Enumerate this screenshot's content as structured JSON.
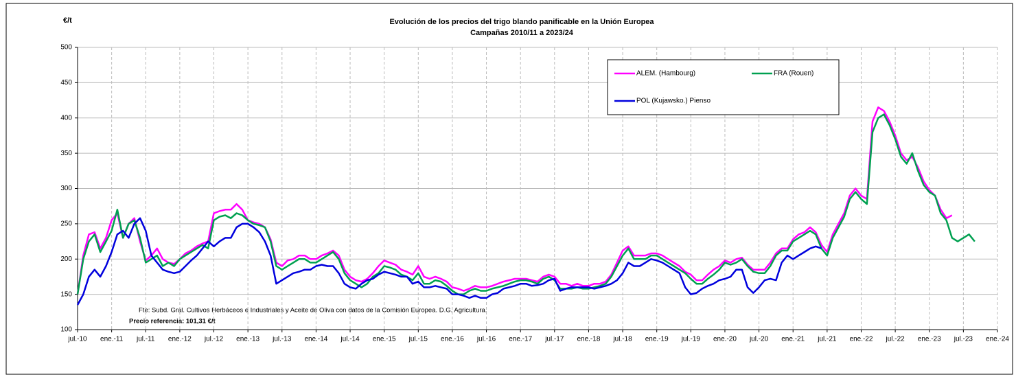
{
  "chart_data": {
    "type": "line",
    "title": "Evolución de los precios del trigo blando panificable en la Unión Europea",
    "subtitle": "Campañas 2010/11 a 2023/24",
    "y_label": "€/t",
    "source": "Fte: Subd. Gral. Cultivos Herbáceos e Industriales y Aceite de Oliva con datos de la Comisión Europea. D.G. Agricultura.",
    "note": "Precio referencia: 101,31 €/t",
    "x": [
      "2010-07",
      "2010-08",
      "2010-09",
      "2010-10",
      "2010-11",
      "2010-12",
      "2011-01",
      "2011-02",
      "2011-03",
      "2011-04",
      "2011-05",
      "2011-06",
      "2011-07",
      "2011-08",
      "2011-09",
      "2011-10",
      "2011-11",
      "2011-12",
      "2012-01",
      "2012-02",
      "2012-03",
      "2012-04",
      "2012-05",
      "2012-06",
      "2012-07",
      "2012-08",
      "2012-09",
      "2012-10",
      "2012-11",
      "2012-12",
      "2013-01",
      "2013-02",
      "2013-03",
      "2013-04",
      "2013-05",
      "2013-06",
      "2013-07",
      "2013-08",
      "2013-09",
      "2013-10",
      "2013-11",
      "2013-12",
      "2014-01",
      "2014-02",
      "2014-03",
      "2014-04",
      "2014-05",
      "2014-06",
      "2014-07",
      "2014-08",
      "2014-09",
      "2014-10",
      "2014-11",
      "2014-12",
      "2015-01",
      "2015-02",
      "2015-03",
      "2015-04",
      "2015-05",
      "2015-06",
      "2015-07",
      "2015-08",
      "2015-09",
      "2015-10",
      "2015-11",
      "2015-12",
      "2016-01",
      "2016-02",
      "2016-03",
      "2016-04",
      "2016-05",
      "2016-06",
      "2016-07",
      "2016-08",
      "2016-09",
      "2016-10",
      "2016-11",
      "2016-12",
      "2017-01",
      "2017-02",
      "2017-03",
      "2017-04",
      "2017-05",
      "2017-06",
      "2017-07",
      "2017-08",
      "2017-09",
      "2017-10",
      "2017-11",
      "2017-12",
      "2018-01",
      "2018-02",
      "2018-03",
      "2018-04",
      "2018-05",
      "2018-06",
      "2018-07",
      "2018-08",
      "2018-09",
      "2018-10",
      "2018-11",
      "2018-12",
      "2019-01",
      "2019-02",
      "2019-03",
      "2019-04",
      "2019-05",
      "2019-06",
      "2019-07",
      "2019-08",
      "2019-09",
      "2019-10",
      "2019-11",
      "2019-12",
      "2020-01",
      "2020-02",
      "2020-03",
      "2020-04",
      "2020-05",
      "2020-06",
      "2020-07",
      "2020-08",
      "2020-09",
      "2020-10",
      "2020-11",
      "2020-12",
      "2021-01",
      "2021-02",
      "2021-03",
      "2021-04",
      "2021-05",
      "2021-06",
      "2021-07",
      "2021-08",
      "2021-09",
      "2021-10",
      "2021-11",
      "2021-12",
      "2022-01",
      "2022-02",
      "2022-03",
      "2022-04",
      "2022-05",
      "2022-06",
      "2022-07",
      "2022-08",
      "2022-09",
      "2022-10",
      "2022-11",
      "2022-12",
      "2023-01",
      "2023-02",
      "2023-03",
      "2023-04",
      "2023-05",
      "2023-06",
      "2023-07",
      "2023-08",
      "2023-09"
    ],
    "series": [
      {
        "name": "ALEM. (Hambourg)",
        "color": "#ff00ff",
        "values": [
          150,
          205,
          235,
          238,
          215,
          230,
          255,
          265,
          230,
          250,
          258,
          225,
          198,
          205,
          215,
          200,
          195,
          193,
          200,
          208,
          212,
          218,
          222,
          225,
          265,
          268,
          270,
          270,
          278,
          270,
          255,
          252,
          250,
          245,
          228,
          195,
          190,
          198,
          200,
          205,
          205,
          200,
          200,
          205,
          208,
          212,
          205,
          185,
          175,
          170,
          168,
          172,
          180,
          190,
          198,
          195,
          192,
          185,
          182,
          178,
          190,
          175,
          172,
          175,
          172,
          168,
          160,
          158,
          155,
          158,
          162,
          160,
          160,
          162,
          165,
          168,
          170,
          172,
          172,
          172,
          170,
          168,
          175,
          178,
          175,
          165,
          165,
          162,
          165,
          162,
          162,
          165,
          165,
          168,
          178,
          195,
          212,
          218,
          205,
          205,
          205,
          208,
          208,
          205,
          200,
          195,
          190,
          182,
          178,
          170,
          170,
          178,
          185,
          190,
          198,
          195,
          200,
          202,
          192,
          185,
          185,
          185,
          195,
          208,
          215,
          215,
          228,
          235,
          238,
          245,
          238,
          220,
          210,
          235,
          250,
          265,
          290,
          300,
          290,
          285,
          395,
          415,
          410,
          395,
          375,
          350,
          340,
          345,
          330,
          310,
          298,
          290,
          270,
          258,
          262,
          null,
          null,
          null,
          null
        ]
      },
      {
        "name": "FRA (Rouen)",
        "color": "#00a050",
        "values": [
          150,
          200,
          225,
          235,
          210,
          225,
          240,
          270,
          230,
          250,
          255,
          230,
          195,
          200,
          205,
          190,
          195,
          190,
          200,
          205,
          210,
          215,
          220,
          215,
          255,
          260,
          262,
          258,
          265,
          262,
          255,
          250,
          248,
          245,
          225,
          190,
          185,
          190,
          195,
          200,
          200,
          195,
          195,
          200,
          205,
          210,
          200,
          180,
          170,
          165,
          160,
          165,
          175,
          180,
          190,
          188,
          185,
          178,
          175,
          170,
          180,
          165,
          165,
          170,
          168,
          162,
          155,
          150,
          150,
          155,
          158,
          155,
          155,
          158,
          160,
          162,
          165,
          168,
          170,
          170,
          168,
          165,
          172,
          175,
          170,
          158,
          158,
          158,
          160,
          158,
          158,
          160,
          162,
          165,
          175,
          190,
          205,
          215,
          200,
          200,
          200,
          205,
          205,
          200,
          195,
          190,
          185,
          180,
          172,
          165,
          165,
          172,
          178,
          185,
          195,
          192,
          195,
          200,
          190,
          182,
          180,
          180,
          190,
          205,
          212,
          212,
          225,
          230,
          235,
          240,
          235,
          215,
          205,
          230,
          245,
          260,
          285,
          295,
          285,
          278,
          380,
          400,
          405,
          390,
          370,
          345,
          335,
          350,
          325,
          305,
          295,
          290,
          265,
          255,
          230,
          225,
          230,
          235,
          225
        ]
      },
      {
        "name": "POL (Kujawsko.) Pienso",
        "color": "#0000dd",
        "values": [
          135,
          150,
          175,
          185,
          175,
          190,
          210,
          235,
          240,
          230,
          250,
          258,
          240,
          205,
          195,
          185,
          182,
          180,
          182,
          190,
          198,
          205,
          215,
          225,
          218,
          225,
          230,
          230,
          245,
          250,
          250,
          245,
          238,
          225,
          205,
          165,
          170,
          175,
          180,
          182,
          185,
          185,
          190,
          192,
          190,
          190,
          180,
          165,
          160,
          158,
          165,
          170,
          172,
          178,
          182,
          180,
          178,
          175,
          175,
          165,
          168,
          160,
          160,
          162,
          160,
          158,
          150,
          150,
          148,
          145,
          148,
          145,
          145,
          150,
          152,
          158,
          160,
          162,
          165,
          165,
          162,
          163,
          165,
          170,
          172,
          155,
          158,
          160,
          160,
          160,
          160,
          158,
          160,
          162,
          165,
          170,
          180,
          195,
          190,
          190,
          195,
          200,
          198,
          195,
          190,
          185,
          180,
          160,
          150,
          152,
          158,
          162,
          165,
          170,
          172,
          175,
          185,
          185,
          160,
          152,
          160,
          170,
          172,
          170,
          195,
          205,
          200,
          205,
          210,
          215,
          218,
          215,
          null,
          null,
          null,
          null,
          null,
          null,
          null,
          null,
          null,
          null,
          null,
          null,
          null,
          null,
          null,
          null,
          null,
          null,
          null,
          null,
          null,
          null,
          null,
          null,
          null,
          null,
          null
        ]
      }
    ],
    "xlim": [
      "2010-07",
      "2024-01"
    ],
    "xticks": [
      {
        "value": "2010-07",
        "label": "jul.-10"
      },
      {
        "value": "2011-01",
        "label": "ene.-11"
      },
      {
        "value": "2011-07",
        "label": "jul.-11"
      },
      {
        "value": "2012-01",
        "label": "ene.-12"
      },
      {
        "value": "2012-07",
        "label": "jul.-12"
      },
      {
        "value": "2013-01",
        "label": "ene.-13"
      },
      {
        "value": "2013-07",
        "label": "jul.-13"
      },
      {
        "value": "2014-01",
        "label": "ene.-14"
      },
      {
        "value": "2014-07",
        "label": "jul.-14"
      },
      {
        "value": "2015-01",
        "label": "ene.-15"
      },
      {
        "value": "2015-07",
        "label": "jul.-15"
      },
      {
        "value": "2016-01",
        "label": "ene.-16"
      },
      {
        "value": "2016-07",
        "label": "jul.-16"
      },
      {
        "value": "2017-01",
        "label": "ene.-17"
      },
      {
        "value": "2017-07",
        "label": "jul.-17"
      },
      {
        "value": "2018-01",
        "label": "ene.-18"
      },
      {
        "value": "2018-07",
        "label": "jul.-18"
      },
      {
        "value": "2019-01",
        "label": "ene.-19"
      },
      {
        "value": "2019-07",
        "label": "jul.-19"
      },
      {
        "value": "2020-01",
        "label": "ene.-20"
      },
      {
        "value": "2020-07",
        "label": "jul.-20"
      },
      {
        "value": "2021-01",
        "label": "ene.-21"
      },
      {
        "value": "2021-07",
        "label": "jul.-21"
      },
      {
        "value": "2022-01",
        "label": "ene.-22"
      },
      {
        "value": "2022-07",
        "label": "jul.-22"
      },
      {
        "value": "2023-01",
        "label": "ene.-23"
      },
      {
        "value": "2023-07",
        "label": "jul.-23"
      },
      {
        "value": "2024-01",
        "label": "ene.-24"
      }
    ],
    "ylim": [
      100,
      500
    ],
    "yticks": [
      100,
      150,
      200,
      250,
      300,
      350,
      400,
      450,
      500
    ],
    "grid": true
  }
}
